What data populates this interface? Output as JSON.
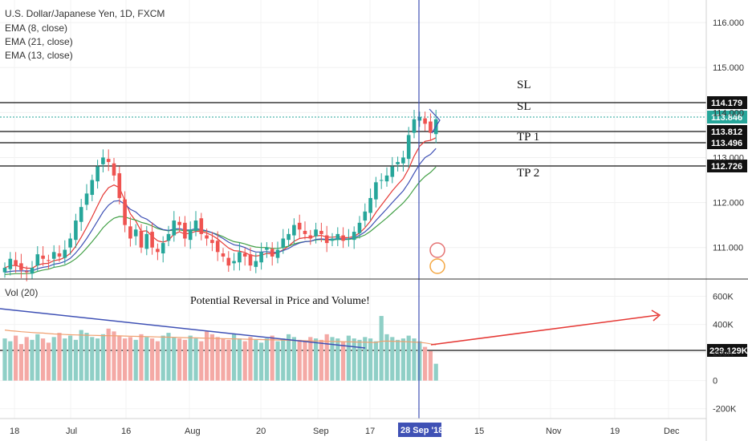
{
  "legend": {
    "title": "U.S. Dollar/Japanese Yen, 1D, FXCM",
    "ema1": "EMA (8, close)",
    "ema2": "EMA (21, close)",
    "ema3": "EMA (13, close)",
    "volume": "Vol (20)"
  },
  "annotations": {
    "note": "Potential Reversal in Price and Volume!",
    "sl1": "SL",
    "sl2": "SL",
    "tp1": "TP 1",
    "tp2": "TP 2"
  },
  "colors": {
    "bull": "#26a69a",
    "bear": "#ef5350",
    "bull_vol": "#8fcfc6",
    "bear_vol": "#f4a9a5",
    "ema8": "#e53935",
    "ema21": "#43a047",
    "ema13": "#3f51b5",
    "vol_ma": "#f0a070",
    "trend_volume": "#3f51b5",
    "arrow": "#e53935",
    "cursor": "#3f51b5",
    "last_price": "#26a69a"
  },
  "chart_data": {
    "type": "candlestick",
    "price_axis": {
      "ticks": [
        "116.000",
        "115.000",
        "114.000",
        "113.000",
        "112.000",
        "111.000"
      ],
      "ylim": [
        110.3,
        116.5
      ]
    },
    "volume_axis": {
      "ticks": [
        "600K",
        "400K",
        "200K",
        "0",
        "-200K"
      ],
      "ylim": [
        -270000,
        700000
      ]
    },
    "x_axis": {
      "ticks": [
        "18",
        "Jul",
        "16",
        "Aug",
        "20",
        "Sep",
        "17",
        "15",
        "Nov",
        "19",
        "Dec"
      ],
      "cursor_label": "28 Sep '18"
    },
    "price_lines": [
      {
        "name": "SL",
        "value": 114.179,
        "label": "114.179"
      },
      {
        "name": "TP 1",
        "value": 113.812,
        "label": "113.812"
      },
      {
        "name": "TP 1 lower",
        "value": 113.496,
        "label": "113.496"
      },
      {
        "name": "TP 2",
        "value": 112.726,
        "label": "112.726"
      }
    ],
    "last_price": {
      "value": 113.846,
      "label": "113.846"
    },
    "volume_line": {
      "value": 229129,
      "label": "229.129K"
    },
    "candles_close": [
      110.55,
      110.75,
      110.6,
      110.5,
      110.45,
      110.55,
      110.85,
      110.75,
      110.7,
      110.9,
      110.8,
      110.95,
      111.2,
      111.6,
      111.9,
      112.2,
      112.5,
      112.8,
      113.0,
      112.9,
      112.6,
      112.1,
      111.5,
      111.2,
      111.4,
      111.0,
      111.3,
      111.0,
      110.9,
      111.1,
      111.3,
      111.6,
      111.5,
      111.2,
      111.4,
      111.6,
      111.3,
      111.2,
      111.1,
      110.9,
      110.8,
      110.6,
      110.7,
      110.9,
      110.8,
      110.6,
      110.7,
      110.9,
      111.0,
      110.8,
      110.95,
      111.2,
      111.3,
      111.5,
      111.4,
      111.3,
      111.2,
      111.4,
      111.3,
      111.1,
      111.2,
      111.3,
      111.15,
      111.2,
      111.35,
      111.55,
      111.8,
      112.1,
      112.45,
      112.5,
      112.6,
      112.8,
      112.9,
      113.0,
      113.5,
      113.85,
      113.9,
      113.75,
      113.55,
      113.85
    ],
    "ema8": [
      110.55,
      110.6,
      110.6,
      110.57,
      110.54,
      110.54,
      110.61,
      110.64,
      110.65,
      110.71,
      110.73,
      110.78,
      110.87,
      111.03,
      111.23,
      111.45,
      111.68,
      111.93,
      112.17,
      112.33,
      112.39,
      112.33,
      112.04,
      111.75,
      111.59,
      111.36,
      111.37,
      111.25,
      111.15,
      111.12,
      111.16,
      111.3,
      111.35,
      111.3,
      111.32,
      111.36,
      111.36,
      111.32,
      111.27,
      111.19,
      111.09,
      110.99,
      110.93,
      110.92,
      110.89,
      110.83,
      110.81,
      110.83,
      110.87,
      110.86,
      110.88,
      110.95,
      111.03,
      111.14,
      111.2,
      111.22,
      111.22,
      111.26,
      111.27,
      111.23,
      111.23,
      111.24,
      111.22,
      111.22,
      111.25,
      111.32,
      111.44,
      111.59,
      111.78,
      111.94,
      112.1,
      112.26,
      112.4,
      112.53,
      112.75,
      113.03,
      113.25,
      113.36,
      113.38,
      113.44
    ],
    "ema13": [
      110.45,
      110.47,
      110.48,
      110.48,
      110.48,
      110.48,
      110.53,
      110.56,
      110.58,
      110.63,
      110.65,
      110.69,
      110.76,
      110.88,
      111.03,
      111.2,
      111.39,
      111.59,
      111.79,
      111.94,
      112.03,
      112.04,
      111.96,
      111.85,
      111.79,
      111.68,
      111.63,
      111.54,
      111.45,
      111.4,
      111.38,
      111.41,
      111.42,
      111.39,
      111.39,
      111.42,
      111.4,
      111.37,
      111.33,
      111.27,
      111.2,
      111.12,
      111.06,
      111.04,
      111.0,
      110.94,
      110.9,
      110.9,
      110.91,
      110.89,
      110.89,
      110.93,
      110.98,
      111.05,
      111.1,
      111.13,
      111.14,
      111.18,
      111.19,
      111.18,
      111.18,
      111.2,
      111.19,
      111.19,
      111.22,
      111.27,
      111.35,
      111.46,
      111.6,
      111.73,
      111.86,
      112.0,
      112.13,
      112.26,
      112.44,
      112.65,
      112.85,
      113.0,
      113.07,
      113.2
    ],
    "ema21": [
      110.4,
      110.41,
      110.42,
      110.42,
      110.42,
      110.43,
      110.47,
      110.5,
      110.52,
      110.56,
      110.58,
      110.61,
      110.67,
      110.75,
      110.86,
      110.99,
      111.13,
      111.28,
      111.44,
      111.56,
      111.65,
      111.69,
      111.68,
      111.64,
      111.61,
      111.56,
      111.53,
      111.48,
      111.42,
      111.39,
      111.37,
      111.39,
      111.39,
      111.37,
      111.37,
      111.39,
      111.38,
      111.36,
      111.33,
      111.29,
      111.24,
      111.18,
      111.13,
      111.11,
      111.08,
      111.04,
      111.01,
      111.0,
      111.0,
      110.98,
      110.98,
      111.0,
      111.03,
      111.08,
      111.11,
      111.13,
      111.14,
      111.17,
      111.18,
      111.17,
      111.17,
      111.18,
      111.18,
      111.18,
      111.2,
      111.23,
      111.28,
      111.36,
      111.46,
      111.56,
      111.66,
      111.77,
      111.88,
      111.99,
      112.13,
      112.3,
      112.46,
      112.58,
      112.67,
      112.79
    ],
    "volume": [
      300000,
      280000,
      320000,
      260000,
      310000,
      290000,
      330000,
      300000,
      270000,
      310000,
      340000,
      300000,
      320000,
      290000,
      360000,
      340000,
      310000,
      300000,
      330000,
      370000,
      350000,
      320000,
      300000,
      310000,
      290000,
      330000,
      310000,
      300000,
      280000,
      320000,
      340000,
      310000,
      300000,
      290000,
      320000,
      300000,
      280000,
      350000,
      330000,
      310000,
      300000,
      290000,
      330000,
      300000,
      280000,
      310000,
      290000,
      270000,
      300000,
      320000,
      280000,
      300000,
      330000,
      310000,
      290000,
      280000,
      310000,
      300000,
      290000,
      330000,
      310000,
      300000,
      280000,
      320000,
      300000,
      290000,
      310000,
      300000,
      280000,
      460000,
      330000,
      310000,
      290000,
      300000,
      320000,
      300000,
      280000,
      240000,
      210000,
      120000
    ],
    "volume_ma": [
      360000,
      355000,
      352000,
      348000,
      345000,
      342000,
      340000,
      338000,
      335000,
      332000,
      330000,
      328000,
      326000,
      325000,
      324000,
      323000,
      322000,
      321000,
      320000,
      320000,
      319000,
      318000,
      317000,
      316000,
      315000,
      314000,
      313000,
      312000,
      311000,
      310000,
      309000,
      308000,
      307000,
      306000,
      305000,
      304000,
      303000,
      302000,
      301000,
      300000,
      299000,
      298000,
      297000,
      296000,
      295000,
      294000,
      293000,
      292000,
      291000,
      290000,
      289000,
      288000,
      287000,
      286000,
      285000,
      284000,
      283000,
      282000,
      281000,
      280000,
      279000,
      278000,
      277000,
      276000,
      275000,
      274000,
      273000,
      272000,
      271000,
      280000,
      281000,
      280000,
      279000,
      278000,
      276000,
      274000,
      272000,
      268000,
      262000,
      254000
    ]
  }
}
